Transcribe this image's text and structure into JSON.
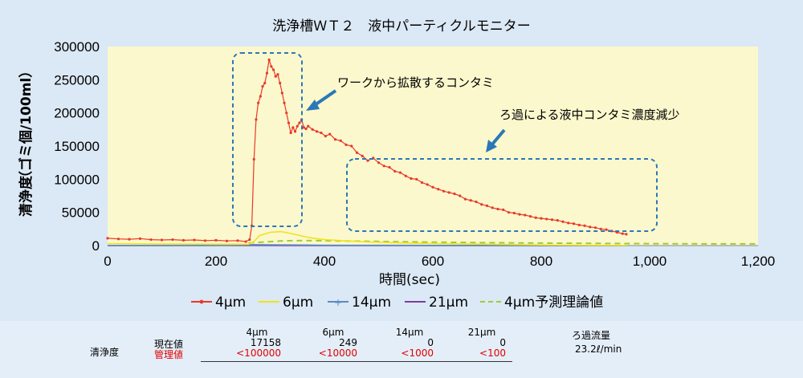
{
  "colors": {
    "s4": "#e8392a",
    "s6": "#f2e21c",
    "s14": "#5b8cc4",
    "s21": "#7b3f9e",
    "pred": "#9ccc3a",
    "plot_bg": "#fbf8cd",
    "box": "#2a78b8",
    "limit_red": "#e00000"
  },
  "chart_data": {
    "type": "line",
    "title": "洗浄槽ＷＴ２　液中パーティクルモニター",
    "xlabel": "時間(sec)",
    "ylabel_main": "清浄度",
    "ylabel_unit": "（ゴミ個/100ml）",
    "xlim": [
      0,
      1200
    ],
    "ylim": [
      0,
      300000
    ],
    "x_ticks": [
      "0",
      "200",
      "400",
      "600",
      "800",
      "1,000",
      "1,200"
    ],
    "y_ticks": [
      "0",
      "50000",
      "100000",
      "150000",
      "200000",
      "250000",
      "300000"
    ],
    "grid": false,
    "legend_position": "bottom",
    "series": [
      {
        "name": "4μm",
        "color": "#e8392a",
        "marker": "dot",
        "x": [
          0,
          20,
          40,
          60,
          80,
          100,
          120,
          140,
          160,
          180,
          200,
          220,
          240,
          255,
          262,
          266,
          270,
          274,
          278,
          282,
          286,
          290,
          294,
          298,
          302,
          306,
          310,
          314,
          318,
          322,
          326,
          330,
          334,
          338,
          342,
          346,
          350,
          354,
          358,
          362,
          366,
          370,
          378,
          386,
          394,
          402,
          410,
          420,
          430,
          440,
          450,
          460,
          470,
          480,
          490,
          500,
          510,
          520,
          530,
          540,
          550,
          560,
          570,
          580,
          590,
          600,
          610,
          620,
          630,
          640,
          650,
          660,
          670,
          680,
          690,
          700,
          710,
          720,
          730,
          740,
          750,
          760,
          770,
          780,
          790,
          800,
          810,
          820,
          830,
          840,
          850,
          860,
          870,
          880,
          890,
          900,
          910,
          920,
          930,
          940,
          950,
          957
        ],
        "y": [
          11000,
          10000,
          9500,
          10500,
          9000,
          8500,
          9000,
          8000,
          8500,
          7500,
          8000,
          7000,
          7500,
          6000,
          9000,
          30000,
          130000,
          190000,
          215000,
          225000,
          240000,
          245000,
          260000,
          280000,
          270000,
          265000,
          255000,
          258000,
          245000,
          230000,
          215000,
          200000,
          185000,
          170000,
          178000,
          172000,
          180000,
          185000,
          190000,
          178000,
          176000,
          180000,
          175000,
          172000,
          170000,
          165000,
          168000,
          160000,
          158000,
          152000,
          150000,
          140000,
          135000,
          128000,
          132000,
          125000,
          120000,
          118000,
          112000,
          110000,
          105000,
          101000,
          100000,
          95000,
          92000,
          88000,
          85000,
          82000,
          80000,
          78000,
          75000,
          70000,
          68000,
          66000,
          62000,
          60000,
          57000,
          55000,
          54000,
          50000,
          49000,
          47000,
          46000,
          44000,
          42000,
          41000,
          40000,
          39000,
          38000,
          36000,
          34000,
          33000,
          31000,
          30000,
          28000,
          27000,
          25000,
          24000,
          22000,
          20000,
          18000,
          17158
        ]
      },
      {
        "name": "6μm",
        "color": "#f2e21c",
        "marker": "none",
        "x": [
          0,
          100,
          200,
          260,
          270,
          280,
          300,
          320,
          340,
          360,
          380,
          400,
          440,
          480,
          520,
          560,
          600,
          650,
          700,
          750,
          800,
          850,
          900,
          957
        ],
        "y": [
          3000,
          2500,
          2000,
          2000,
          6000,
          15000,
          20000,
          21000,
          18000,
          14000,
          11000,
          9000,
          7000,
          5500,
          4500,
          3800,
          3000,
          2500,
          2000,
          1500,
          1000,
          600,
          400,
          249
        ]
      },
      {
        "name": "14μm",
        "color": "#5b8cc4",
        "marker": "none",
        "x": [
          0,
          200,
          270,
          300,
          400,
          600,
          957
        ],
        "y": [
          300,
          300,
          1500,
          1200,
          600,
          200,
          0
        ]
      },
      {
        "name": "21μm",
        "color": "#7b3f9e",
        "marker": "none",
        "x": [
          0,
          270,
          400,
          957
        ],
        "y": [
          0,
          200,
          50,
          0
        ]
      },
      {
        "name": "4μm予測理論値",
        "color": "#9ccc3a",
        "marker": "dashed",
        "x": [
          260,
          290,
          320,
          360,
          400,
          450,
          500,
          560,
          620,
          700,
          780,
          860,
          940,
          1000,
          1080,
          1200
        ],
        "y": [
          4000,
          5500,
          7000,
          7600,
          7300,
          6800,
          6200,
          5600,
          5000,
          4400,
          3900,
          3500,
          3100,
          2900,
          2700,
          2500
        ]
      }
    ],
    "annotations": [
      {
        "text": "ワークから拡散するコンタミ"
      },
      {
        "text": "ろ過による液中コンタミ濃度減少"
      }
    ]
  },
  "table": {
    "row_label": "清浄度",
    "current_label": "現在値",
    "limit_label": "管理値",
    "columns": [
      {
        "size": "4μm",
        "current": "17158",
        "limit": "<100000"
      },
      {
        "size": "6μm",
        "current": "249",
        "limit": "<10000"
      },
      {
        "size": "14μm",
        "current": "0",
        "limit": "<1000"
      },
      {
        "size": "21μm",
        "current": "0",
        "limit": "<100"
      }
    ],
    "flow_label": "ろ過流量",
    "flow_value": "23.2ℓ/min"
  }
}
